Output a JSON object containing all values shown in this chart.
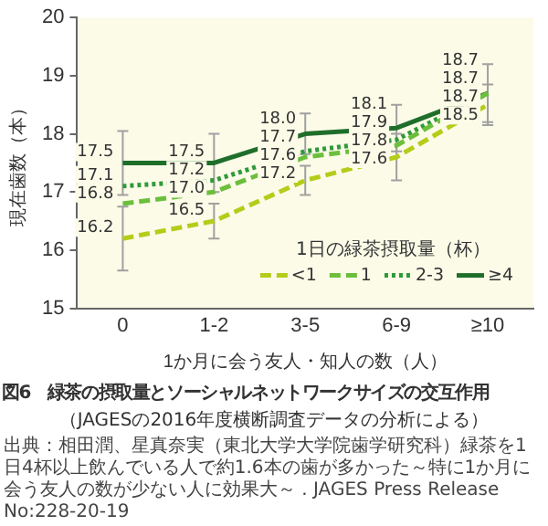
{
  "chart_data": {
    "type": "line",
    "title": "図6　緑茶の摂取量とソーシャルネットワークサイズの交互作用",
    "subtitle": "（JAGESの2016年度横断調査データの分析による）",
    "xlabel": "1か月に会う友人・知人の数（人）",
    "ylabel": "現在歯数（本）",
    "legend_title": "1日の緑茶摂取量（杯）",
    "annotations": [
      "出典：相田潤、星真奈実（東北大学大学院歯学研究科）緑茶を1日4杯以上飲んでいる人で約1.6本の歯が多かった～特に1か月に会う友人の数が少ない人に効果大～ . JAGES Press Release No:228-20-19"
    ],
    "categories": [
      "0",
      "1-2",
      "3-5",
      "6-9",
      "≥10"
    ],
    "series": [
      {
        "name": "<1",
        "color": "#b5cc1a",
        "line_style": "dashed",
        "values": [
          16.2,
          16.5,
          17.2,
          17.6,
          18.5
        ],
        "value_labels": [
          "16.2",
          "16.5",
          "17.2",
          "17.6",
          "18.5"
        ],
        "errors": [
          0.55,
          0.3,
          0.25,
          0.4,
          0.35
        ]
      },
      {
        "name": "1",
        "color": "#6cbf3c",
        "line_style": "dashed",
        "values": [
          16.8,
          17.0,
          17.6,
          17.8,
          18.7
        ],
        "value_labels": [
          "16.8",
          "17.0",
          "17.6",
          "17.8",
          "18.7"
        ]
      },
      {
        "name": "2-3",
        "color": "#2f9a3a",
        "line_style": "dotted",
        "values": [
          17.1,
          17.2,
          17.7,
          17.9,
          18.7
        ],
        "value_labels": [
          "17.1",
          "17.2",
          "17.7",
          "17.9",
          "18.7"
        ]
      },
      {
        "name": "≥4",
        "color": "#1f6e2a",
        "line_style": "solid",
        "values": [
          17.5,
          17.5,
          18.0,
          18.1,
          18.7
        ],
        "value_labels": [
          "17.5",
          "17.5",
          "18.0",
          "18.1",
          "18.7"
        ],
        "errors": [
          0.55,
          0.5,
          0.35,
          0.4,
          0.5
        ]
      }
    ],
    "ylim": [
      15,
      20
    ],
    "yticks": [
      15,
      16,
      17,
      18,
      19,
      20
    ],
    "grid": false,
    "legend": "bottom right",
    "marker": "none"
  }
}
